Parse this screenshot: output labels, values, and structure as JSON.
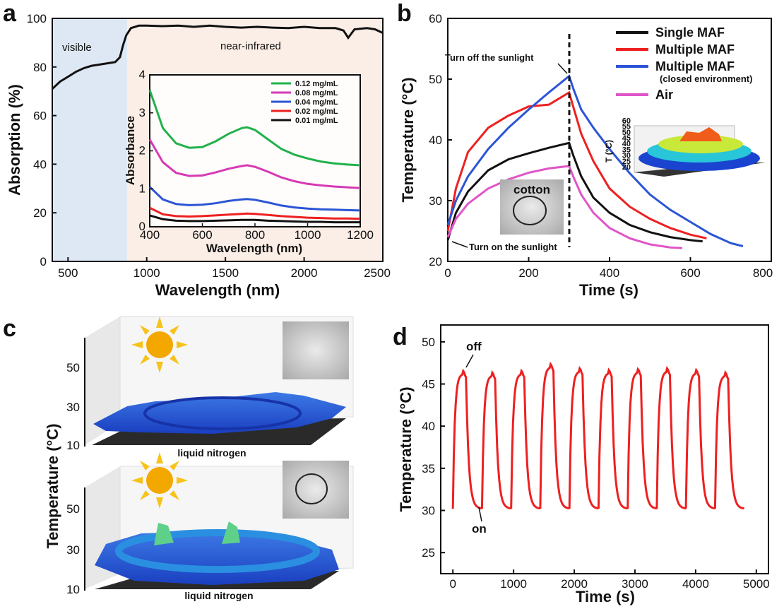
{
  "panels": {
    "a": {
      "letter": "a"
    },
    "b": {
      "letter": "b"
    },
    "c": {
      "letter": "c"
    },
    "d": {
      "letter": "d"
    }
  },
  "colors": {
    "green": "#22b14c",
    "magenta": "#d63ab5",
    "blue": "#2b55d6",
    "red": "#ee2020",
    "black": "#111111",
    "pink": "#e055c8"
  },
  "chart_data": [
    {
      "id": "a",
      "type": "line",
      "title": "",
      "xlabel": "Wavelength (nm)",
      "ylabel": "Absorption (%)",
      "xlim": [
        400,
        2500
      ],
      "ylim": [
        0,
        100
      ],
      "xticks": [
        "500",
        "1000",
        "1500",
        "2000",
        "2500"
      ],
      "yticks": [
        "0",
        "20",
        "40",
        "60",
        "80",
        "100"
      ],
      "region_labels": [
        "visible",
        "near-infrared"
      ],
      "series": [
        {
          "name": "absorption",
          "color": "#111111",
          "x": [
            400,
            450,
            500,
            550,
            600,
            650,
            700,
            750,
            800,
            830,
            850,
            870,
            900,
            950,
            1000,
            1100,
            1200,
            1300,
            1400,
            1500,
            1600,
            1700,
            1800,
            1900,
            2000,
            2100,
            2200,
            2250,
            2280,
            2320,
            2400,
            2450,
            2500
          ],
          "y": [
            71,
            74,
            76,
            78,
            79.5,
            80.5,
            81,
            81.5,
            82,
            84,
            89,
            93,
            96,
            97,
            97,
            96.8,
            97,
            96.5,
            97,
            96.5,
            96.2,
            96.5,
            96.2,
            96,
            96.5,
            96,
            96,
            95,
            92,
            95.5,
            96,
            95.5,
            94
          ]
        }
      ],
      "inset": {
        "xlabel": "Wavelength (nm)",
        "ylabel": "Absorbance",
        "xlim": [
          400,
          1200
        ],
        "ylim": [
          0,
          4
        ],
        "xticks": [
          "400",
          "600",
          "800",
          "1000",
          "1200"
        ],
        "yticks": [
          "0",
          "1",
          "2",
          "3",
          "4"
        ],
        "x": [
          400,
          450,
          500,
          550,
          600,
          650,
          700,
          750,
          770,
          800,
          850,
          900,
          950,
          1000,
          1050,
          1100,
          1150,
          1200
        ],
        "series": [
          {
            "name": "0.12 mg/mL",
            "color": "#22b14c",
            "values": [
              3.6,
              2.6,
              2.2,
              2.08,
              2.1,
              2.25,
              2.45,
              2.6,
              2.62,
              2.55,
              2.3,
              2.05,
              1.9,
              1.8,
              1.72,
              1.67,
              1.64,
              1.62
            ]
          },
          {
            "name": "0.08 mg/mL",
            "color": "#d63ab5",
            "values": [
              2.3,
              1.7,
              1.42,
              1.34,
              1.35,
              1.43,
              1.53,
              1.6,
              1.62,
              1.58,
              1.45,
              1.3,
              1.2,
              1.13,
              1.09,
              1.06,
              1.04,
              1.02
            ]
          },
          {
            "name": "0.04 mg/mL",
            "color": "#2b55d6",
            "values": [
              1.05,
              0.72,
              0.6,
              0.57,
              0.58,
              0.62,
              0.68,
              0.72,
              0.73,
              0.71,
              0.64,
              0.56,
              0.51,
              0.48,
              0.46,
              0.45,
              0.44,
              0.43
            ]
          },
          {
            "name": "0.02 mg/mL",
            "color": "#ee2020",
            "values": [
              0.5,
              0.33,
              0.28,
              0.27,
              0.28,
              0.3,
              0.32,
              0.34,
              0.35,
              0.34,
              0.31,
              0.28,
              0.26,
              0.24,
              0.23,
              0.22,
              0.22,
              0.21
            ]
          },
          {
            "name": "0.01 mg/mL",
            "color": "#111111",
            "values": [
              0.3,
              0.2,
              0.16,
              0.15,
              0.15,
              0.16,
              0.17,
              0.18,
              0.18,
              0.18,
              0.16,
              0.15,
              0.14,
              0.13,
              0.13,
              0.12,
              0.12,
              0.12
            ]
          }
        ]
      }
    },
    {
      "id": "b",
      "type": "line",
      "title": "",
      "xlabel": "Time (s)",
      "ylabel": "Temperature (°C)",
      "xlim": [
        0,
        800
      ],
      "ylim": [
        20,
        60
      ],
      "xticks": [
        "0",
        "200",
        "400",
        "600",
        "800"
      ],
      "yticks": [
        "20",
        "30",
        "40",
        "50",
        "60"
      ],
      "annotations": [
        "Turn off the sunlight",
        "Turn on the sunlight"
      ],
      "dashed_line_x": 300,
      "inset_photo_label": "cotton",
      "inset_3d": {
        "zlabel": "T (°C)",
        "ticks": [
          "20",
          "25",
          "30",
          "35",
          "40",
          "45",
          "50",
          "55",
          "60"
        ]
      },
      "series": [
        {
          "name": "Single MAF",
          "color": "#111111",
          "x": [
            0,
            20,
            50,
            100,
            150,
            200,
            250,
            300,
            310,
            330,
            360,
            400,
            450,
            500,
            550,
            600,
            630
          ],
          "y": [
            23.5,
            28,
            31.5,
            35,
            36.8,
            37.8,
            38.7,
            39.5,
            37.5,
            34,
            30.5,
            28,
            26,
            24.8,
            24,
            23.5,
            23.3
          ]
        },
        {
          "name": "Multiple MAF",
          "color": "#ee2020",
          "x": [
            0,
            20,
            50,
            100,
            150,
            200,
            250,
            280,
            300,
            310,
            330,
            360,
            400,
            450,
            500,
            550,
            600,
            640
          ],
          "y": [
            25,
            32,
            38,
            42,
            44,
            45.5,
            45.8,
            47,
            47.8,
            45.5,
            41,
            36.5,
            32,
            29,
            27,
            25.5,
            24.4,
            23.8
          ]
        },
        {
          "name": "Multiple MAF (closed environment)",
          "color": "#2b55d6",
          "x": [
            0,
            20,
            50,
            100,
            150,
            200,
            250,
            300,
            310,
            330,
            360,
            400,
            450,
            500,
            550,
            600,
            650,
            700,
            730
          ],
          "y": [
            26,
            30,
            34,
            38.5,
            42,
            45,
            47.8,
            50.5,
            48.5,
            45,
            42,
            38.5,
            34.5,
            31,
            28.5,
            26.5,
            24.5,
            23,
            22.5
          ]
        },
        {
          "name": "Air",
          "color": "#e055c8",
          "x": [
            0,
            20,
            50,
            100,
            150,
            200,
            250,
            300,
            310,
            330,
            360,
            400,
            450,
            500,
            550,
            580
          ],
          "y": [
            24,
            27,
            29.5,
            32,
            33.5,
            34.6,
            35.3,
            35.7,
            34,
            31,
            28,
            25.5,
            23.8,
            22.8,
            22.3,
            22.2
          ]
        }
      ]
    },
    {
      "id": "c",
      "type": "surface",
      "ylabel": "Temperature (°C)",
      "zticks": [
        "10",
        "30",
        "50"
      ],
      "sublabels": [
        "liquid nitrogen",
        "liquid nitrogen"
      ]
    },
    {
      "id": "d",
      "type": "line",
      "title": "",
      "xlabel": "Time (s)",
      "ylabel": "Temperature (°C)",
      "xlim": [
        -200,
        5200
      ],
      "ylim": [
        22.5,
        52
      ],
      "xticks": [
        "0",
        "1000",
        "2000",
        "3000",
        "4000",
        "5000"
      ],
      "yticks": [
        "25",
        "30",
        "35",
        "40",
        "45",
        "50"
      ],
      "annotations": [
        "off",
        "on"
      ],
      "cycles": 10,
      "period_s": 480,
      "low_c": 30.2,
      "high_c": 46.0,
      "peak_values_c": [
        46.2,
        46.0,
        46.2,
        47.0,
        46.5,
        46.3,
        46.4,
        46.5,
        46.3,
        46.0
      ],
      "series": [
        {
          "name": "cycling",
          "color": "#ee2020"
        }
      ]
    }
  ]
}
